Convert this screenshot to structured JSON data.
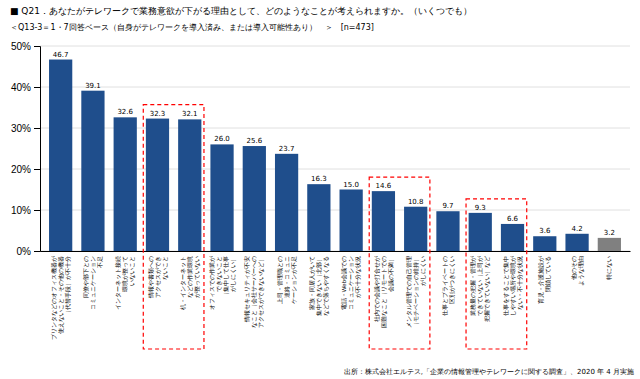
{
  "chart_data": {
    "type": "bar",
    "title": "■  Q21．あなたがテレワークで業務意欲が下がる理由として、どのようなことが考えられますか。（いくつでも）",
    "subtitle": "＜Q13-3＝1・7回答ベース（自身がテレワークを導入済み、または導入可能性あり）　＞　[n=473]",
    "categories": [
      "プリンタなどのオフィス機器が\n使えないこと・その他の機器\n（代替手段）が不十分",
      "同僚や部下との\nコミュニケーション\n不足",
      "インターネット接続\n環境が整って\nいないこと",
      "情報や書類への\nアクセスができ\nないこと",
      "机・インターネット\nなどの作業環境\nが整っていない",
      "オフィスでの作業が\nできないこと\n（集中して仕事\nがしにくい）",
      "情報セキュリティが不安\nなこと（会社サーバーへの\nアクセスができないなど）",
      "上司・管理職との\n連絡・コミュニ\nケーションが不足",
      "家族・同居人がいて\n集中できない（北部）\nなどで落ちやすくなる",
      "電話・Web会議での\nコミュニケーション\nが不十分な状況",
      "社内での会議や打合せが\n困難なこと（リモートでの\n会議の不満）",
      "メンタル管理での自己管理\n（モチベーションの維持）\nがしにくい",
      "仕事とプライベートの\n区別がつきにくい",
      "業務量の把握・管理が\nできていない（上司が\n把握できていない）など",
      "仕事をすることで集中\nしやすい場所や環境が\nない・不十分な状況",
      "育児・介護施設が\n閉鎖している",
      "他のその\nような理由",
      "特にない"
    ],
    "values": [
      46.7,
      39.1,
      32.6,
      32.3,
      32.1,
      26.0,
      25.6,
      23.7,
      16.3,
      15.0,
      14.6,
      10.8,
      9.7,
      9.3,
      6.6,
      3.6,
      4.2,
      3.2
    ],
    "value_labels": [
      "46.7",
      "39.1",
      "32.6",
      "32.3",
      "32.1",
      "26.0",
      "25.6",
      "23.7",
      "16.3",
      "15.0",
      "14.6",
      "10.8",
      "9.7",
      "9.3",
      "6.6",
      "3.6",
      "4.2",
      "3.2"
    ],
    "colors": [
      "#1f4e8c",
      "#1f4e8c",
      "#1f4e8c",
      "#1f4e8c",
      "#1f4e8c",
      "#1f4e8c",
      "#1f4e8c",
      "#1f4e8c",
      "#1f4e8c",
      "#1f4e8c",
      "#1f4e8c",
      "#1f4e8c",
      "#1f4e8c",
      "#1f4e8c",
      "#1f4e8c",
      "#1f4e8c",
      "#1f4e8c",
      "#808080"
    ],
    "ylim": [
      0,
      50
    ],
    "yticks": [
      {
        "value": 0,
        "label": "0%"
      },
      {
        "value": 10,
        "label": "10%"
      },
      {
        "value": 20,
        "label": "20%"
      },
      {
        "value": 30,
        "label": "30%"
      },
      {
        "value": 40,
        "label": "40%"
      },
      {
        "value": 50,
        "label": "50%"
      }
    ],
    "grid": true,
    "data_labels": true,
    "highlight_groups": [
      [
        3,
        4
      ],
      [
        10,
        11
      ],
      [
        13,
        14
      ]
    ],
    "annotations": [
      "出所：株式会社エルテス,「企業の情報管理やテレワークに関する調査」、2020 年 4 月実施"
    ]
  }
}
